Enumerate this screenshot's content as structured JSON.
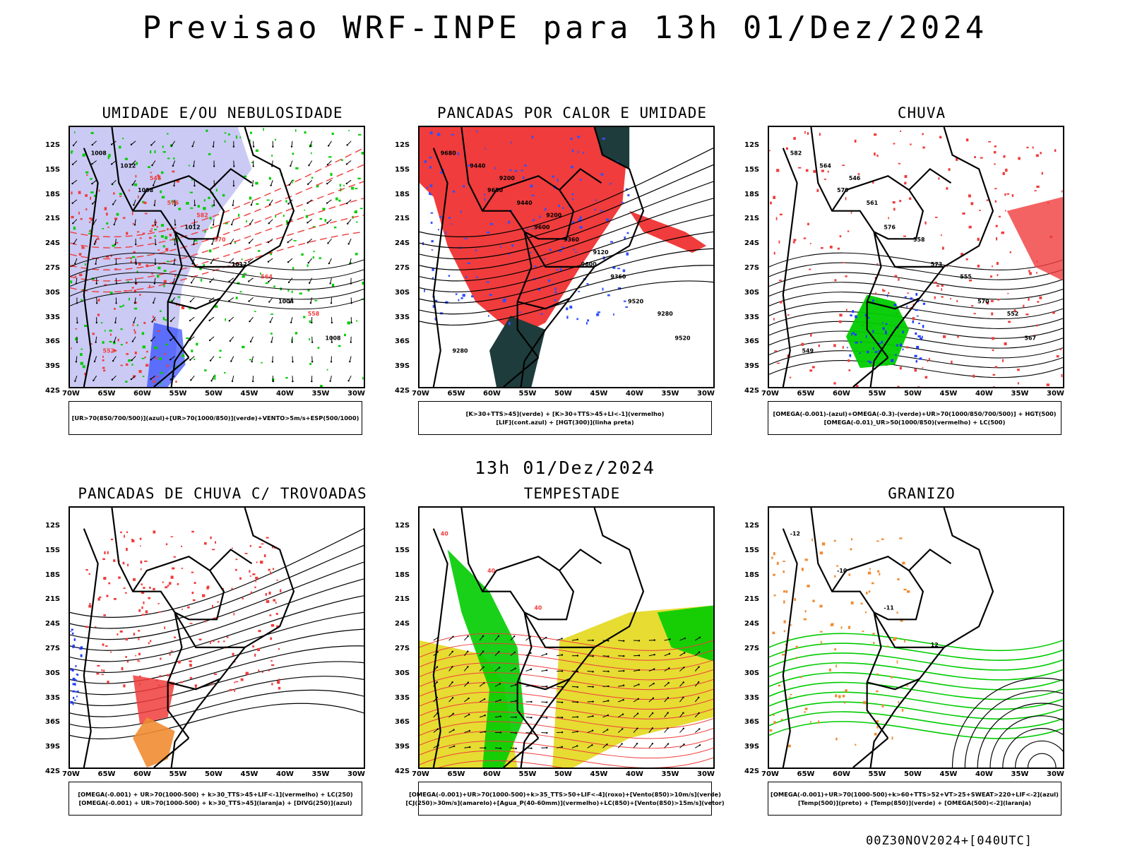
{
  "title": "Previsao WRF-INPE  para 13h 01/Dez/2024",
  "subtitle": "13h 01/Dez/2024",
  "footer": "00Z30NOV2024+[040UTC]",
  "axes": {
    "lat_labels": [
      "12S",
      "15S",
      "18S",
      "21S",
      "24S",
      "27S",
      "30S",
      "33S",
      "36S",
      "39S",
      "42S"
    ],
    "lon_labels": [
      "70W",
      "65W",
      "60W",
      "55W",
      "50W",
      "45W",
      "40W",
      "35W",
      "30W"
    ]
  },
  "colors": {
    "blue_shade": "#b8b8f0",
    "green": "#00cc00",
    "red": "#f03c3c",
    "dark_teal": "#1e3c3c",
    "yellow": "#e6dc32",
    "orange": "#f08c32",
    "blue": "#1e3cff"
  },
  "panels": [
    {
      "title": "UMIDADE E/OU NEBULOSIDADE",
      "legend": [
        "[UR>70(850/700/500)](azul)+[UR>70(1000/850)](verde)+VENTO>5m/s+ESP(500/1000)"
      ],
      "labels": [
        "1008",
        "1008",
        "1012",
        "1012",
        "1004",
        "1008",
        "1012",
        "576",
        "570",
        "564",
        "558",
        "552",
        "546",
        "582"
      ]
    },
    {
      "title": "PANCADAS POR CALOR E UMIDADE",
      "legend": [
        "[K>30+TTS>45](verde) + [K>30+TTS>45+LI<-1](vermelho)",
        "[LIF](cont.azul) + [HGT(300)](linha preta)"
      ],
      "labels": [
        "9680",
        "9680",
        "9600",
        "9600",
        "9520",
        "9520",
        "9440",
        "9440",
        "9360",
        "9360",
        "9280",
        "9280",
        "9200",
        "9200",
        "9120"
      ]
    },
    {
      "title": "CHUVA",
      "legend": [
        "[OMEGA(-0.001)-(azul)+OMEGA(-0.3)-(verde)+UR>70(1000/850/700/500)] + HGT(500)",
        "[OMEGA(-0.01)_UR>50(1000/850)(vermelho) + LC(500)"
      ],
      "labels": [
        "582",
        "579",
        "576",
        "573",
        "570",
        "567",
        "564",
        "561",
        "558",
        "555",
        "552",
        "549",
        "546"
      ]
    },
    {
      "title": "PANCADAS DE CHUVA C/ TROVOADAS",
      "legend": [
        "[OMEGA(-0.001) + UR>70(1000-500) + k>30_TTS>45+LIF<-1](vermelho) + LC(250)",
        "[OMEGA(-0.001) + UR>70(1000-500) + k>30_TTS>45](laranja) + [DIVG(250)](azul)"
      ],
      "labels": []
    },
    {
      "title": "TEMPESTADE",
      "legend": [
        "[OMEGA(-0.001)+UR>70(1000-500)+k>35_TTS>50+LIF<-4](roxo)+[Vento(850)>10m/s](verde)",
        "[CJ(250)>30m/s](amarelo)+[Agua_P(40-60mm)](vermelho)+LC(850)+[Vento(850)>15m/s](vetor)"
      ],
      "labels": [
        "40",
        "40",
        "40"
      ]
    },
    {
      "title": "GRANIZO",
      "legend": [
        "[OMEGA(-0.001)+UR>70(1000-500)+k>60+TTS>52+VT>25+SWEAT>220+LIF<-2](azul)",
        "[Temp(500)](preto) + [Temp(850)](verde) + [OMEGA(500)<-2](laranja)"
      ],
      "labels": [
        "-12",
        "-10",
        "-11",
        "12"
      ]
    }
  ]
}
